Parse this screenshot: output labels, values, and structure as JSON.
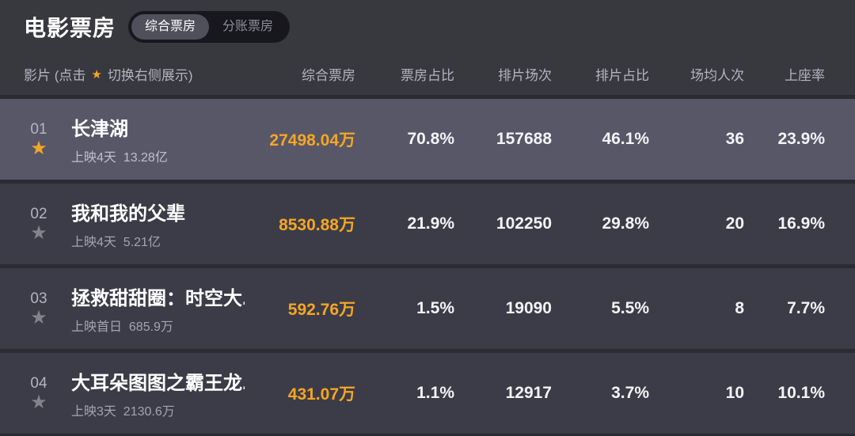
{
  "page": {
    "title": "电影票房",
    "tabs": [
      {
        "label": "综合票房",
        "active": true
      },
      {
        "label": "分账票房",
        "active": false
      }
    ]
  },
  "icons": {
    "star": "★"
  },
  "table": {
    "header": {
      "film_prefix": "影片 (点击",
      "film_suffix": "切换右侧展示)",
      "columns": [
        "综合票房",
        "票房占比",
        "排片场次",
        "排片占比",
        "场均人次",
        "上座率"
      ]
    },
    "rows": [
      {
        "rank": "01",
        "starred": true,
        "highlighted": true,
        "title": "长津湖",
        "subtitle": "上映4天  13.28亿",
        "box_office": "27498.04万",
        "box_office_share": "70.8%",
        "screenings": "157688",
        "screening_share": "46.1%",
        "avg_attendance": "36",
        "occupancy": "23.9%"
      },
      {
        "rank": "02",
        "starred": false,
        "highlighted": false,
        "title": "我和我的父辈",
        "subtitle": "上映4天  5.21亿",
        "box_office": "8530.88万",
        "box_office_share": "21.9%",
        "screenings": "102250",
        "screening_share": "29.8%",
        "avg_attendance": "20",
        "occupancy": "16.9%"
      },
      {
        "rank": "03",
        "starred": false,
        "highlighted": false,
        "title": "拯救甜甜圈：时空大...",
        "subtitle": "上映首日  685.9万",
        "box_office": "592.76万",
        "box_office_share": "1.5%",
        "screenings": "19090",
        "screening_share": "5.5%",
        "avg_attendance": "8",
        "occupancy": "7.7%"
      },
      {
        "rank": "04",
        "starred": false,
        "highlighted": false,
        "title": "大耳朵图图之霸王龙...",
        "subtitle": "上映3天  2130.6万",
        "box_office": "431.07万",
        "box_office_share": "1.1%",
        "screenings": "12917",
        "screening_share": "3.7%",
        "avg_attendance": "10",
        "occupancy": "10.1%"
      }
    ]
  },
  "colors": {
    "accent_orange": "#f5a623",
    "highlight_row_bg": "#575768",
    "row_bg": "#3c3c48",
    "panel_bg": "#38383f",
    "page_bg": "#2b2b33"
  }
}
